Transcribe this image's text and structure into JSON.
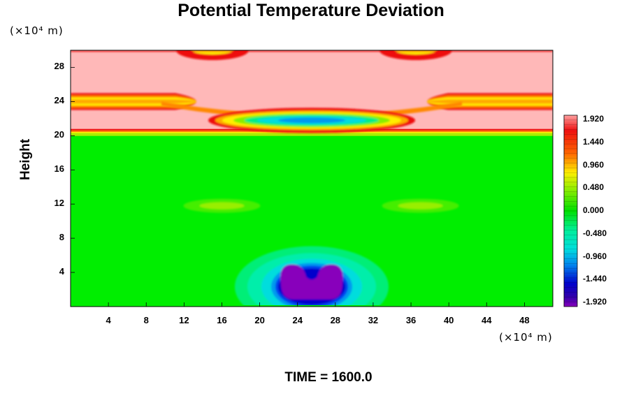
{
  "chart_data": {
    "type": "heatmap",
    "title": "Potential Temperature Deviation",
    "ylabel": "Height",
    "xunit": "(×10⁴ m)",
    "yunit": "(×10⁴ m)",
    "xlim": [
      0,
      51
    ],
    "ylim": [
      0,
      30
    ],
    "x_ticks": [
      "4",
      "8",
      "12",
      "16",
      "20",
      "24",
      "28",
      "32",
      "36",
      "40",
      "44",
      "48"
    ],
    "y_ticks": [
      "4",
      "8",
      "12",
      "16",
      "20",
      "24",
      "28"
    ],
    "colorbar": {
      "range": [
        -1.92,
        1.92
      ],
      "tick_labels": [
        "1.920",
        "1.440",
        "0.960",
        "0.480",
        "0.000",
        "-0.480",
        "-0.960",
        "-1.440",
        "-1.920"
      ]
    },
    "features": [
      {
        "name": "cold bubble",
        "x_range": [
          22,
          29
        ],
        "y_range": [
          0.3,
          3.3
        ],
        "value": -1.92
      },
      {
        "name": "cold lens",
        "x_range": [
          12,
          39
        ],
        "y_range": [
          20.8,
          23.3
        ],
        "value": -0.8
      },
      {
        "name": "warm upper layer",
        "y_range": [
          20.3,
          30
        ],
        "value": 1.92
      },
      {
        "name": "weak warm patches",
        "x_centers": [
          16,
          37
        ],
        "y": 11.8,
        "value": 0.4
      }
    ],
    "footer": "TIME = 1600.0"
  },
  "colors": {
    "background": "#00ee00",
    "warm": "#ffb8b8",
    "cold_core": "#8800bb"
  }
}
